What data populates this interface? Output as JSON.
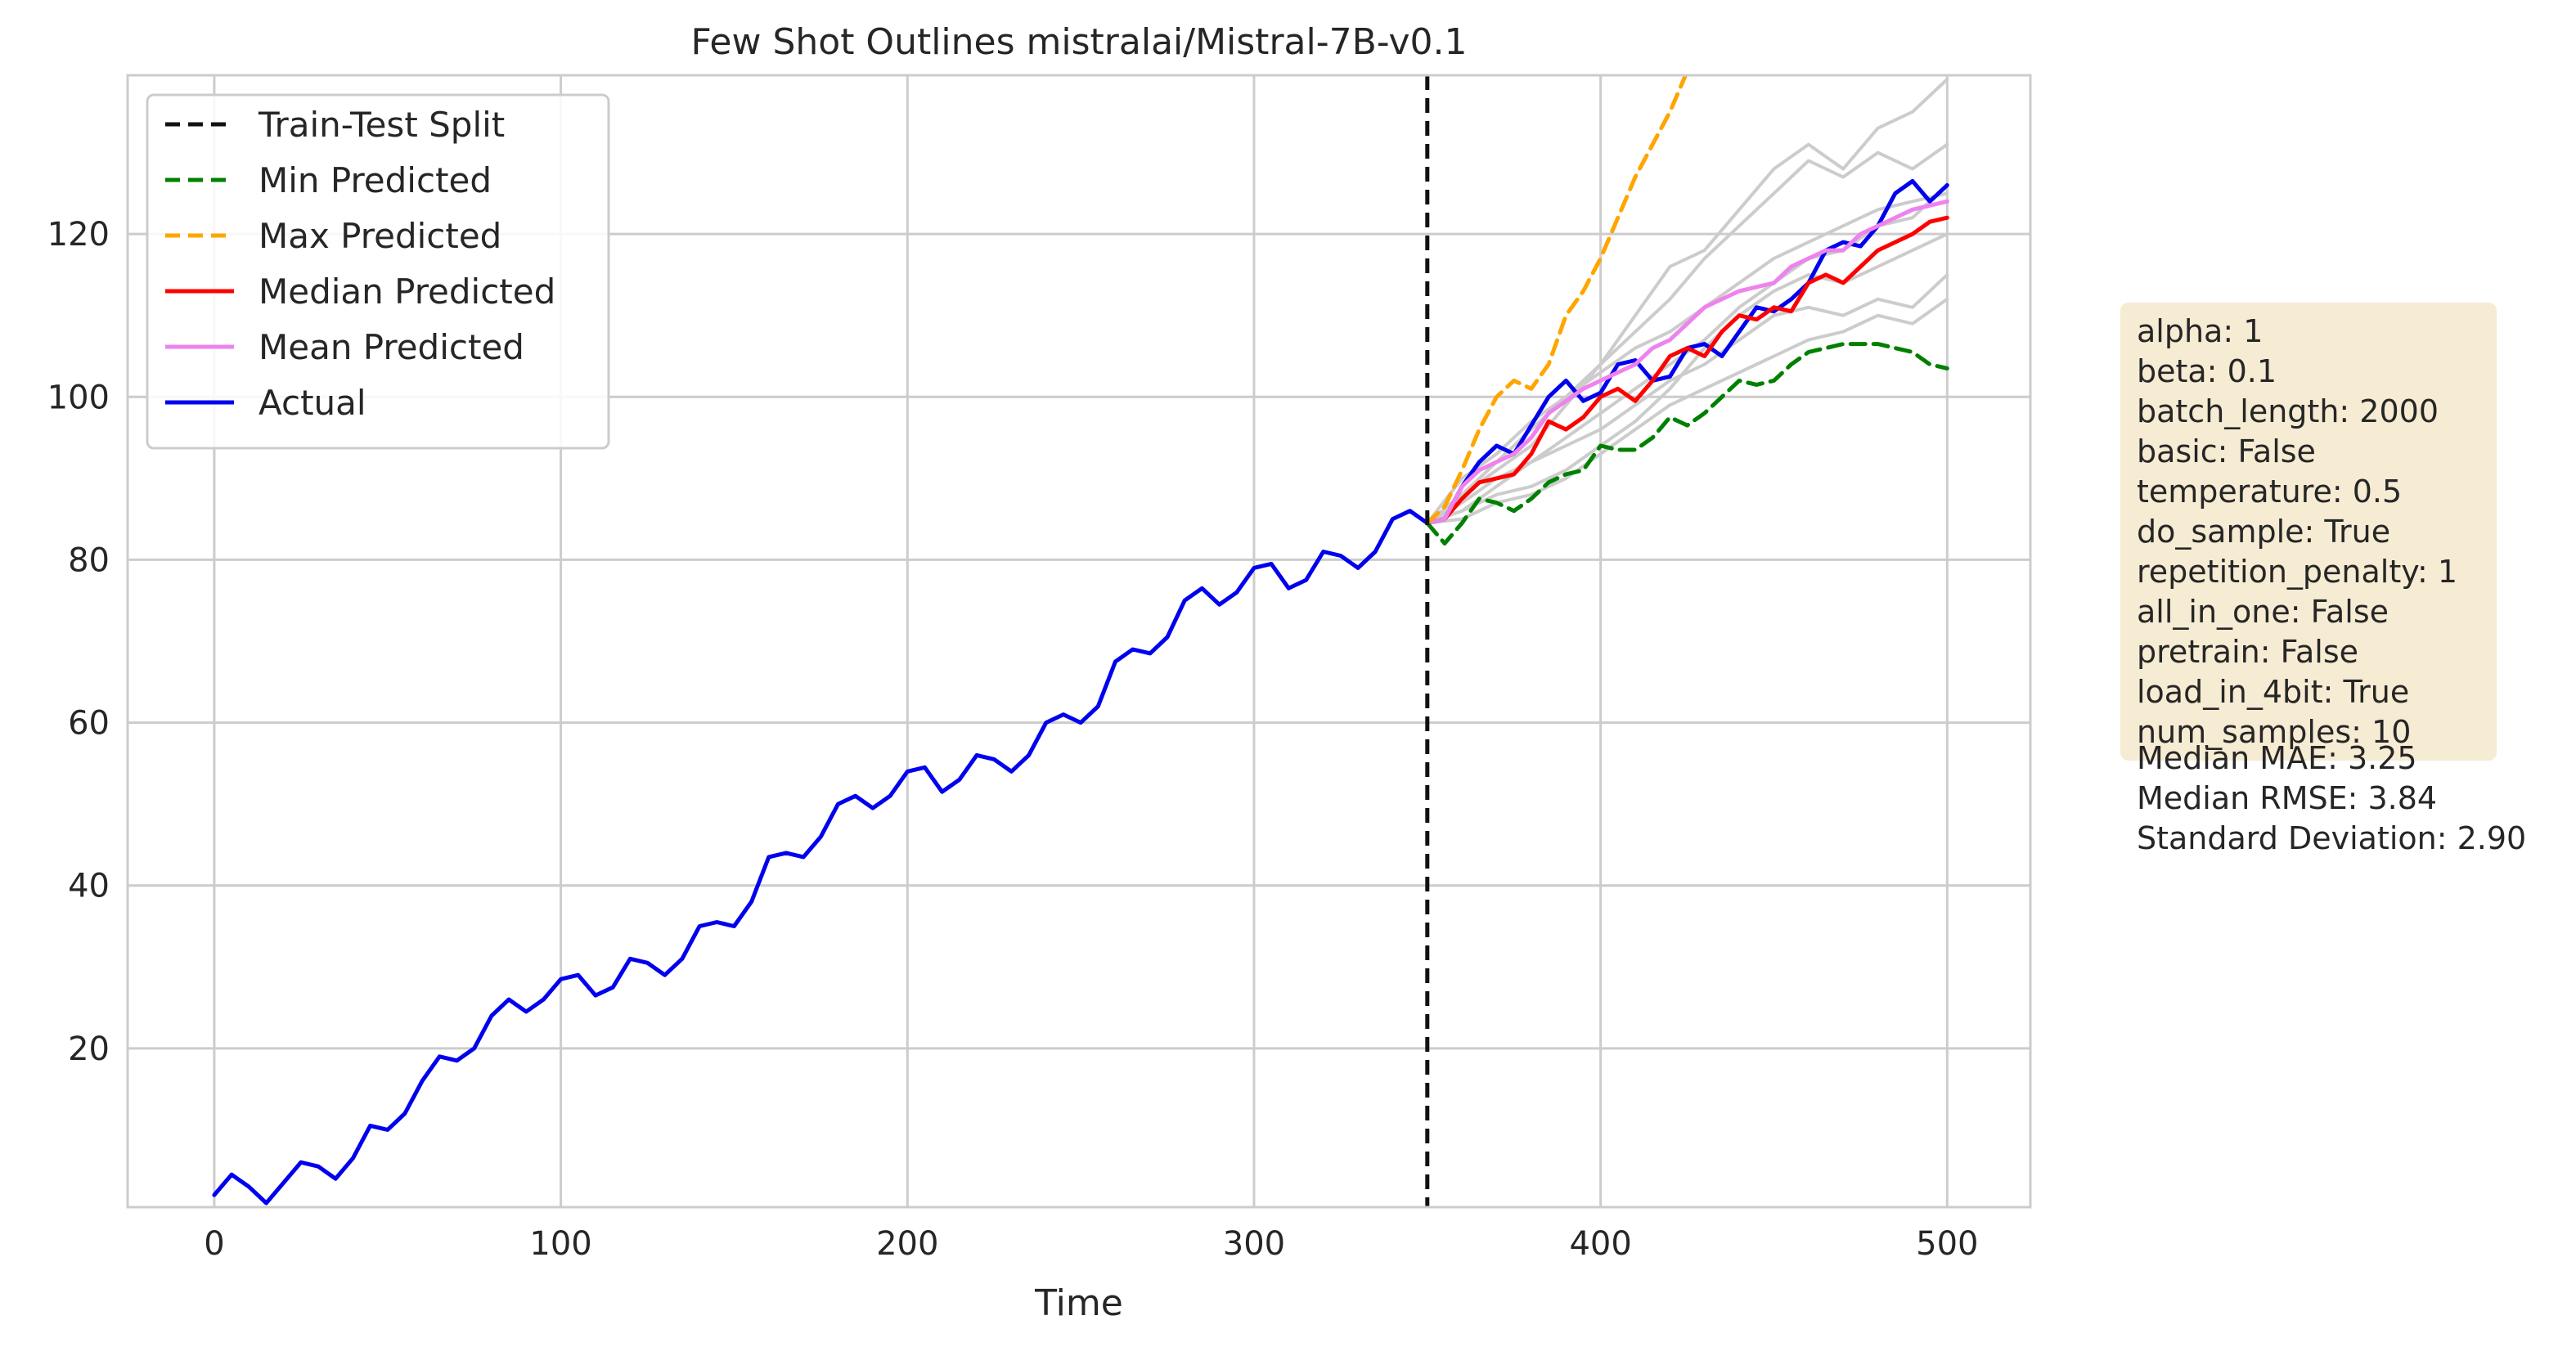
{
  "chart_data": {
    "type": "line",
    "title": "Few Shot Outlines mistralai/Mistral-7B-v0.1",
    "xlabel": "Time",
    "ylabel": "",
    "xlim": [
      -25,
      524
    ],
    "ylim": [
      0.5,
      139.5
    ],
    "xticks": [
      0,
      100,
      200,
      300,
      400,
      500
    ],
    "yticks": [
      20,
      40,
      60,
      80,
      100,
      120
    ],
    "grid": true,
    "legend_position": "top-left",
    "split_x": 350,
    "legend": [
      {
        "label": "Train-Test Split",
        "color": "#111111",
        "dash": true
      },
      {
        "label": "Min Predicted",
        "color": "#008000",
        "dash": true
      },
      {
        "label": "Max Predicted",
        "color": "#ffa500",
        "dash": true
      },
      {
        "label": "Median Predicted",
        "color": "#ff0000",
        "dash": false
      },
      {
        "label": "Mean Predicted",
        "color": "#ee82ee",
        "dash": false
      },
      {
        "label": "Actual",
        "color": "#0000ee",
        "dash": false
      }
    ],
    "series": [
      {
        "name": "Actual",
        "color": "#0000ee",
        "dash": false,
        "x": [
          0,
          5,
          10,
          15,
          20,
          25,
          30,
          35,
          40,
          45,
          50,
          55,
          60,
          65,
          70,
          75,
          80,
          85,
          90,
          95,
          100,
          105,
          110,
          115,
          120,
          125,
          130,
          135,
          140,
          145,
          150,
          155,
          160,
          165,
          170,
          175,
          180,
          185,
          190,
          195,
          200,
          205,
          210,
          215,
          220,
          225,
          230,
          235,
          240,
          245,
          250,
          255,
          260,
          265,
          270,
          275,
          280,
          285,
          290,
          295,
          300,
          305,
          310,
          315,
          320,
          325,
          330,
          335,
          340,
          345,
          350,
          355,
          360,
          365,
          370,
          375,
          380,
          385,
          390,
          395,
          400,
          405,
          410,
          415,
          420,
          425,
          430,
          435,
          440,
          445,
          450,
          455,
          460,
          465,
          470,
          475,
          480,
          485,
          490,
          495,
          500
        ],
        "y": [
          2,
          4.5,
          3,
          1,
          3.5,
          6,
          5.5,
          4,
          6.5,
          10.5,
          10,
          12,
          16,
          19,
          18.5,
          20,
          24,
          26,
          24.5,
          26,
          28.5,
          29,
          26.5,
          27.5,
          31,
          30.5,
          29,
          31,
          35,
          35.5,
          35,
          38,
          43.5,
          44,
          43.5,
          46,
          50,
          51,
          49.5,
          51,
          54,
          54.5,
          51.5,
          53,
          56,
          55.5,
          54,
          56,
          60,
          61,
          60,
          62,
          67.5,
          69,
          68.5,
          70.5,
          75,
          76.5,
          74.5,
          76,
          79,
          79.5,
          76.5,
          77.5,
          81,
          80.5,
          79,
          81,
          85,
          86,
          84.5,
          85,
          89,
          92,
          94,
          93,
          96.5,
          100,
          102,
          99.5,
          100.5,
          104,
          104.5,
          102,
          102.5,
          106,
          106.5,
          105,
          108,
          111,
          110.5,
          112,
          114,
          118,
          119,
          118.5,
          121,
          125,
          126.5,
          124,
          126
        ]
      },
      {
        "name": "Median Predicted",
        "color": "#ff0000",
        "dash": false,
        "x": [
          350,
          355,
          360,
          365,
          370,
          375,
          380,
          385,
          390,
          395,
          400,
          405,
          410,
          415,
          420,
          425,
          430,
          435,
          440,
          445,
          450,
          455,
          460,
          465,
          470,
          475,
          480,
          485,
          490,
          495,
          500
        ],
        "y": [
          84.5,
          85,
          87.5,
          89.5,
          90,
          90.5,
          93,
          97,
          96,
          97.5,
          100,
          101,
          99.5,
          102,
          105,
          106,
          105,
          108,
          110,
          109.5,
          111,
          110.5,
          114,
          115,
          114,
          116,
          118,
          119,
          120,
          121.5,
          122
        ]
      },
      {
        "name": "Mean Predicted",
        "color": "#ee82ee",
        "dash": false,
        "x": [
          350,
          355,
          360,
          365,
          370,
          375,
          380,
          385,
          390,
          395,
          400,
          405,
          410,
          415,
          420,
          425,
          430,
          435,
          440,
          445,
          450,
          455,
          460,
          465,
          470,
          475,
          480,
          485,
          490,
          495,
          500
        ],
        "y": [
          84.5,
          85,
          89,
          91,
          92,
          93,
          95,
          98,
          99.5,
          101,
          102,
          103,
          104,
          106,
          107,
          109,
          111,
          112,
          113,
          113.5,
          114,
          116,
          117,
          118,
          118,
          120,
          121,
          122,
          123,
          123.5,
          124
        ]
      },
      {
        "name": "Min Predicted",
        "color": "#008000",
        "dash": true,
        "x": [
          350,
          355,
          360,
          365,
          370,
          375,
          380,
          385,
          390,
          395,
          400,
          405,
          410,
          415,
          420,
          425,
          430,
          435,
          440,
          445,
          450,
          455,
          460,
          465,
          470,
          475,
          480,
          485,
          490,
          495,
          500
        ],
        "y": [
          84.5,
          82,
          84.5,
          87.5,
          87,
          86,
          87.5,
          89.5,
          90.5,
          91,
          94,
          93.5,
          93.5,
          95,
          97.5,
          96.5,
          98,
          100,
          102,
          101.5,
          102,
          104,
          105.5,
          106,
          106.5,
          106.5,
          106.5,
          106,
          105.5,
          104,
          103.5
        ]
      },
      {
        "name": "Max Predicted",
        "color": "#ffa500",
        "dash": true,
        "x": [
          350,
          355,
          360,
          365,
          370,
          375,
          380,
          385,
          390,
          395,
          400,
          405,
          410,
          415,
          420,
          425
        ],
        "y": [
          84.5,
          86.5,
          91,
          96,
          100,
          102,
          101,
          104,
          110,
          113,
          117,
          122,
          127,
          131,
          135,
          140
        ]
      },
      {
        "name": "",
        "color": "#cccccc",
        "dash": false,
        "x": [
          350,
          360,
          370,
          380,
          390,
          400,
          410,
          420,
          430,
          440,
          450,
          460,
          470,
          480,
          490,
          500
        ],
        "y": [
          84.5,
          88,
          91,
          94,
          99,
          104,
          110,
          116,
          118,
          123,
          128,
          131,
          128,
          133,
          135,
          139
        ]
      },
      {
        "name": "",
        "color": "#cccccc",
        "dash": false,
        "x": [
          350,
          360,
          370,
          380,
          390,
          400,
          410,
          420,
          430,
          440,
          450,
          460,
          470,
          480,
          490,
          500
        ],
        "y": [
          84.5,
          90,
          93,
          97,
          100,
          104,
          108,
          112,
          117,
          121,
          125,
          129,
          127,
          130,
          128,
          131
        ]
      },
      {
        "name": "",
        "color": "#cccccc",
        "dash": false,
        "x": [
          350,
          360,
          370,
          380,
          390,
          400,
          410,
          420,
          430,
          440,
          450,
          460,
          470,
          480,
          490,
          500
        ],
        "y": [
          84.5,
          87,
          90,
          92,
          95,
          98,
          101,
          104,
          107,
          111,
          114,
          117,
          118,
          121,
          122,
          126
        ]
      },
      {
        "name": "",
        "color": "#cccccc",
        "dash": false,
        "x": [
          350,
          360,
          370,
          380,
          390,
          400,
          410,
          420,
          430,
          440,
          450,
          460,
          470,
          480,
          490,
          500
        ],
        "y": [
          84.5,
          86,
          88,
          89,
          91,
          94,
          97,
          101,
          106,
          110,
          113,
          115,
          114,
          116,
          118,
          120
        ]
      },
      {
        "name": "",
        "color": "#cccccc",
        "dash": false,
        "x": [
          350,
          360,
          370,
          380,
          390,
          400,
          410,
          420,
          430,
          440,
          450,
          460,
          470,
          480,
          490,
          500
        ],
        "y": [
          84.5,
          86,
          89,
          92,
          94,
          96,
          99,
          102,
          104,
          107,
          110,
          111,
          110,
          112,
          111,
          115
        ]
      },
      {
        "name": "",
        "color": "#cccccc",
        "dash": false,
        "x": [
          350,
          360,
          370,
          380,
          390,
          400,
          410,
          420,
          430,
          440,
          450,
          460,
          470,
          480,
          490,
          500
        ],
        "y": [
          84.5,
          85,
          87,
          88,
          90,
          93,
          96,
          99,
          101,
          103,
          105,
          107,
          108,
          110,
          109,
          112
        ]
      },
      {
        "name": "",
        "color": "#cccccc",
        "dash": false,
        "x": [
          350,
          360,
          370,
          380,
          390,
          400,
          410,
          420,
          430,
          440,
          450,
          460,
          470,
          480,
          490,
          500
        ],
        "y": [
          84.5,
          88,
          92,
          96,
          100,
          103,
          106,
          108,
          111,
          114,
          117,
          119,
          121,
          123,
          124,
          125
        ]
      }
    ]
  },
  "info_box": {
    "lines": [
      "alpha: 1",
      "beta: 0.1",
      "batch_length: 2000",
      "basic: False",
      "temperature: 0.5",
      "do_sample: True",
      "repetition_penalty: 1",
      "all_in_one: False",
      "pretrain: False",
      "load_in_4bit: True",
      "num_samples: 10"
    ],
    "metrics": [
      "Median MAE: 3.25",
      "Median RMSE: 3.84",
      "Standard Deviation: 2.90"
    ],
    "background_color": "#f6ebd3"
  }
}
